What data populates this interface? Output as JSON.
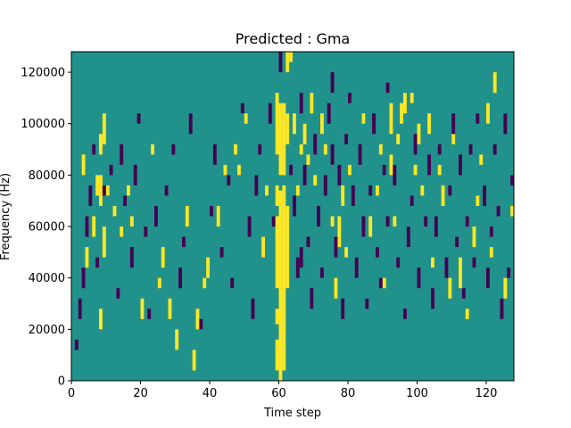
{
  "chart_data": {
    "type": "heatmap",
    "title": "Predicted : Gma",
    "xlabel": "Time step",
    "ylabel": "Frequency (Hz)",
    "xlim": [
      0,
      128
    ],
    "ylim": [
      0,
      128000
    ],
    "x_ticks": [
      0,
      20,
      40,
      60,
      80,
      100,
      120
    ],
    "y_ticks": [
      0,
      20000,
      40000,
      60000,
      80000,
      100000,
      120000
    ],
    "x_tick_labels": [
      "0",
      "20",
      "40",
      "60",
      "80",
      "100",
      "120"
    ],
    "y_tick_labels": [
      "0",
      "20000",
      "40000",
      "60000",
      "80000",
      "100000",
      "120000"
    ],
    "colors": {
      "background": "#21918c",
      "low": "#440154",
      "high": "#fde725"
    },
    "n_time_steps": 128,
    "n_freq_bins": 64,
    "bin_height_hz": 2000,
    "high_cells": [
      [
        59,
        2,
        8
      ],
      [
        59,
        11,
        14
      ],
      [
        59,
        18,
        32
      ],
      [
        59,
        34,
        38
      ],
      [
        59,
        44,
        56
      ],
      [
        60,
        0,
        37
      ],
      [
        60,
        40,
        54
      ],
      [
        61,
        2,
        38
      ],
      [
        61,
        40,
        54
      ],
      [
        62,
        18,
        34
      ],
      [
        62,
        46,
        52
      ],
      [
        8,
        10,
        14
      ],
      [
        8,
        34,
        40
      ],
      [
        8,
        44,
        48
      ],
      [
        9,
        24,
        30
      ],
      [
        9,
        46,
        52
      ],
      [
        10,
        36,
        38
      ],
      [
        14,
        28,
        30
      ],
      [
        16,
        36,
        38
      ],
      [
        25,
        18,
        20
      ],
      [
        26,
        22,
        26
      ],
      [
        35,
        2,
        6
      ],
      [
        36,
        10,
        14
      ],
      [
        38,
        18,
        20
      ],
      [
        39,
        20,
        24
      ],
      [
        42,
        30,
        34
      ],
      [
        47,
        44,
        46
      ],
      [
        48,
        40,
        42
      ],
      [
        56,
        36,
        38
      ],
      [
        62,
        60,
        64
      ],
      [
        63,
        62,
        64
      ],
      [
        64,
        48,
        52
      ],
      [
        66,
        44,
        46
      ],
      [
        67,
        46,
        50
      ],
      [
        68,
        42,
        44
      ],
      [
        70,
        38,
        40
      ],
      [
        72,
        48,
        52
      ],
      [
        76,
        16,
        20
      ],
      [
        77,
        26,
        32
      ],
      [
        78,
        34,
        38
      ],
      [
        80,
        40,
        42
      ],
      [
        88,
        36,
        38
      ],
      [
        90,
        18,
        20
      ],
      [
        92,
        40,
        44
      ],
      [
        92,
        48,
        54
      ],
      [
        94,
        46,
        48
      ],
      [
        95,
        50,
        54
      ],
      [
        96,
        52,
        56
      ],
      [
        99,
        40,
        42
      ],
      [
        100,
        46,
        50
      ],
      [
        101,
        36,
        38
      ],
      [
        103,
        48,
        52
      ],
      [
        107,
        34,
        38
      ],
      [
        109,
        16,
        20
      ],
      [
        112,
        18,
        24
      ],
      [
        116,
        26,
        30
      ],
      [
        118,
        42,
        44
      ],
      [
        120,
        50,
        54
      ],
      [
        122,
        56,
        60
      ],
      [
        125,
        16,
        20
      ],
      [
        127,
        32,
        34
      ],
      [
        3,
        40,
        44
      ],
      [
        4,
        22,
        26
      ],
      [
        6,
        28,
        32
      ],
      [
        7,
        36,
        40
      ],
      [
        12,
        32,
        34
      ],
      [
        17,
        30,
        32
      ],
      [
        20,
        12,
        16
      ],
      [
        23,
        44,
        46
      ],
      [
        28,
        12,
        16
      ],
      [
        30,
        6,
        10
      ],
      [
        33,
        30,
        34
      ],
      [
        44,
        40,
        42
      ],
      [
        50,
        50,
        52
      ],
      [
        55,
        24,
        28
      ],
      [
        65,
        36,
        38
      ],
      [
        69,
        52,
        56
      ],
      [
        73,
        44,
        46
      ],
      [
        75,
        30,
        32
      ],
      [
        79,
        24,
        26
      ],
      [
        84,
        50,
        52
      ],
      [
        86,
        28,
        32
      ],
      [
        89,
        44,
        46
      ],
      [
        93,
        30,
        32
      ],
      [
        98,
        54,
        56
      ],
      [
        104,
        22,
        24
      ],
      [
        106,
        40,
        42
      ],
      [
        110,
        46,
        48
      ],
      [
        114,
        12,
        14
      ],
      [
        117,
        34,
        36
      ],
      [
        121,
        24,
        26
      ]
    ],
    "low_cells": [
      [
        1,
        6,
        8
      ],
      [
        2,
        12,
        16
      ],
      [
        3,
        18,
        22
      ],
      [
        4,
        28,
        32
      ],
      [
        5,
        34,
        38
      ],
      [
        6,
        44,
        46
      ],
      [
        7,
        22,
        24
      ],
      [
        9,
        36,
        38
      ],
      [
        11,
        40,
        42
      ],
      [
        13,
        16,
        18
      ],
      [
        14,
        42,
        46
      ],
      [
        15,
        34,
        36
      ],
      [
        17,
        22,
        26
      ],
      [
        18,
        38,
        42
      ],
      [
        19,
        50,
        52
      ],
      [
        21,
        28,
        30
      ],
      [
        22,
        12,
        14
      ],
      [
        24,
        30,
        34
      ],
      [
        27,
        36,
        38
      ],
      [
        29,
        44,
        46
      ],
      [
        31,
        18,
        22
      ],
      [
        32,
        26,
        28
      ],
      [
        34,
        48,
        52
      ],
      [
        37,
        10,
        12
      ],
      [
        40,
        32,
        34
      ],
      [
        41,
        42,
        46
      ],
      [
        43,
        24,
        26
      ],
      [
        45,
        38,
        40
      ],
      [
        46,
        18,
        20
      ],
      [
        49,
        52,
        54
      ],
      [
        51,
        28,
        32
      ],
      [
        52,
        12,
        16
      ],
      [
        53,
        36,
        40
      ],
      [
        54,
        44,
        46
      ],
      [
        57,
        50,
        54
      ],
      [
        58,
        30,
        32
      ],
      [
        64,
        32,
        36
      ],
      [
        65,
        20,
        24
      ],
      [
        66,
        52,
        56
      ],
      [
        67,
        38,
        42
      ],
      [
        68,
        26,
        28
      ],
      [
        69,
        14,
        18
      ],
      [
        70,
        44,
        48
      ],
      [
        71,
        30,
        34
      ],
      [
        72,
        20,
        22
      ],
      [
        73,
        36,
        40
      ],
      [
        74,
        50,
        54
      ],
      [
        75,
        42,
        46
      ],
      [
        76,
        24,
        28
      ],
      [
        77,
        38,
        42
      ],
      [
        78,
        12,
        16
      ],
      [
        79,
        46,
        48
      ],
      [
        81,
        34,
        38
      ],
      [
        82,
        20,
        24
      ],
      [
        83,
        42,
        46
      ],
      [
        84,
        28,
        32
      ],
      [
        85,
        14,
        16
      ],
      [
        86,
        36,
        38
      ],
      [
        87,
        48,
        52
      ],
      [
        88,
        24,
        26
      ],
      [
        89,
        18,
        20
      ],
      [
        90,
        40,
        42
      ],
      [
        91,
        30,
        32
      ],
      [
        93,
        38,
        42
      ],
      [
        94,
        22,
        24
      ],
      [
        96,
        12,
        14
      ],
      [
        97,
        26,
        30
      ],
      [
        98,
        34,
        36
      ],
      [
        99,
        44,
        48
      ],
      [
        100,
        18,
        22
      ],
      [
        102,
        30,
        32
      ],
      [
        103,
        40,
        44
      ],
      [
        104,
        14,
        18
      ],
      [
        105,
        28,
        32
      ],
      [
        106,
        44,
        46
      ],
      [
        108,
        20,
        24
      ],
      [
        109,
        36,
        38
      ],
      [
        110,
        48,
        52
      ],
      [
        111,
        26,
        28
      ],
      [
        112,
        40,
        44
      ],
      [
        113,
        16,
        18
      ],
      [
        114,
        30,
        32
      ],
      [
        115,
        44,
        46
      ],
      [
        116,
        22,
        24
      ],
      [
        117,
        50,
        52
      ],
      [
        119,
        34,
        38
      ],
      [
        120,
        18,
        22
      ],
      [
        121,
        28,
        30
      ],
      [
        122,
        44,
        46
      ],
      [
        123,
        32,
        34
      ],
      [
        124,
        12,
        16
      ],
      [
        125,
        48,
        52
      ],
      [
        126,
        20,
        22
      ],
      [
        127,
        38,
        40
      ],
      [
        60,
        60,
        64
      ],
      [
        63,
        40,
        42
      ],
      [
        66,
        22,
        26
      ],
      [
        75,
        56,
        60
      ],
      [
        80,
        54,
        56
      ],
      [
        91,
        56,
        58
      ]
    ]
  }
}
